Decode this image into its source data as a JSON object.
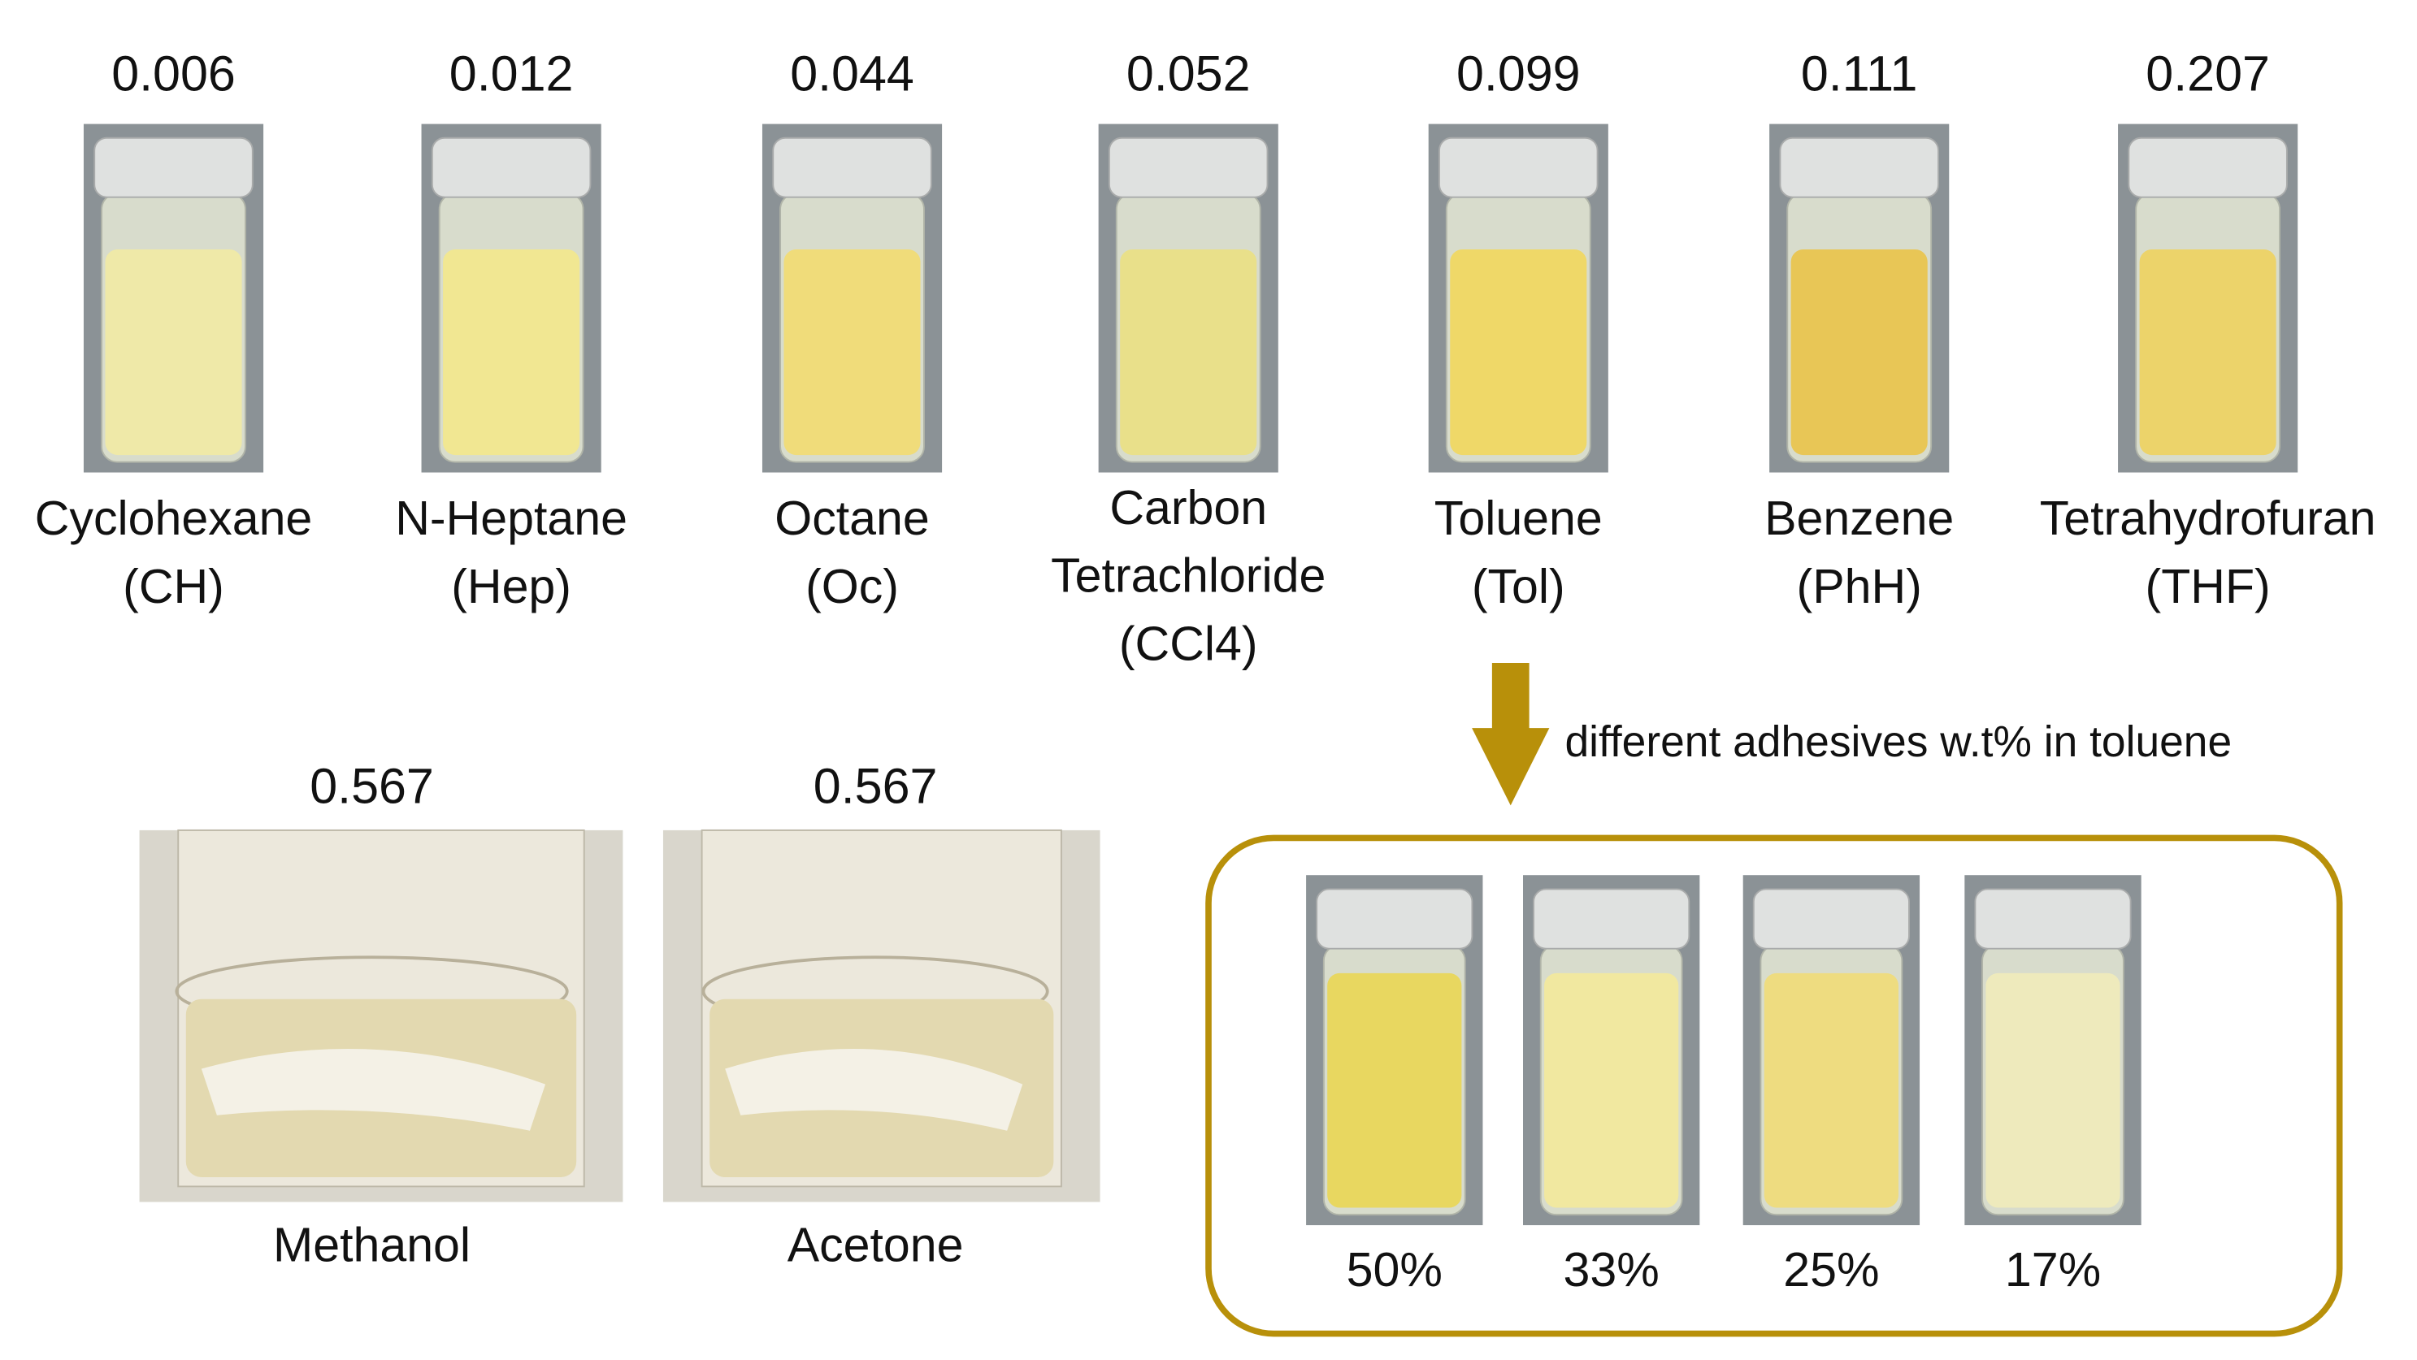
{
  "solvents": [
    {
      "value": "0.006",
      "label": [
        "Cyclohexane",
        "(CH)"
      ]
    },
    {
      "value": "0.012",
      "label": [
        "N-Heptane",
        "(Hep)"
      ]
    },
    {
      "value": "0.044",
      "label": [
        "Octane",
        "(Oc)"
      ]
    },
    {
      "value": "0.052",
      "label": [
        "Carbon",
        "Tetrachloride",
        "(CCl4)"
      ]
    },
    {
      "value": "0.099",
      "label": [
        "Toluene",
        "(Tol)"
      ]
    },
    {
      "value": "0.111",
      "label": [
        "Benzene",
        "(PhH)"
      ]
    },
    {
      "value": "0.207",
      "label": [
        "Tetrahydrofuran",
        "(THF)"
      ]
    }
  ],
  "beakers": [
    {
      "value": "0.567",
      "label": "Methanol"
    },
    {
      "value": "0.567",
      "label": "Acetone"
    }
  ],
  "arrow_text": "different adhesives w.t% in toluene",
  "concentrations": [
    "50%",
    "33%",
    "25%",
    "17%"
  ]
}
